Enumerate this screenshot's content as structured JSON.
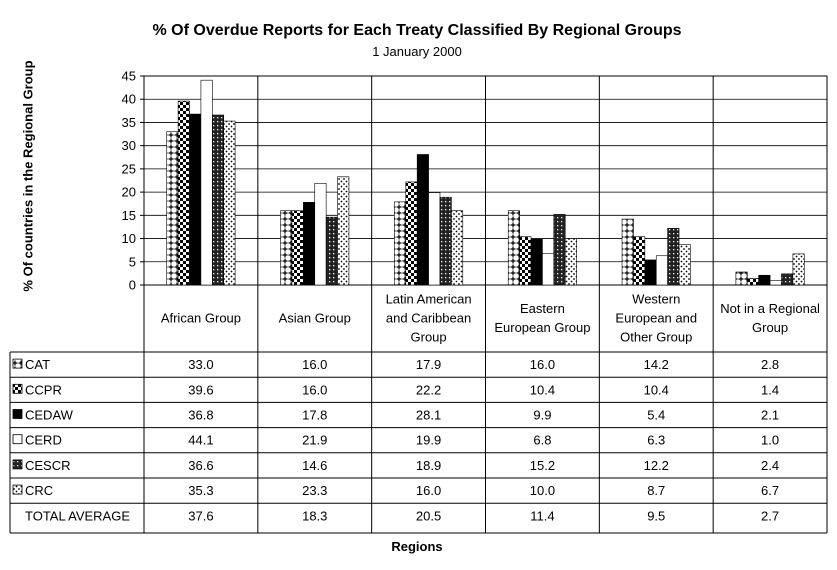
{
  "chart_data": {
    "type": "bar",
    "title": "% Of Overdue Reports for Each Treaty Classified By Regional Groups",
    "subtitle": "1 January 2000",
    "xlabel": "Regions",
    "ylabel": "% Of countries in the Regional Group",
    "ylim": [
      0,
      45
    ],
    "yticks": [
      0,
      5,
      10,
      15,
      20,
      25,
      30,
      35,
      40,
      45
    ],
    "grid": true,
    "categories": [
      "African Group",
      "Asian Group",
      "Latin American and Caribbean Group",
      "Eastern European Group",
      "Western European and Other Group",
      "Not in a Regional Group"
    ],
    "category_lines": [
      [
        "African Group"
      ],
      [
        "Asian Group"
      ],
      [
        "Latin American",
        "and Caribbean",
        "Group"
      ],
      [
        "Eastern",
        "European Group"
      ],
      [
        "Western",
        "European and",
        "Other Group"
      ],
      [
        "Not in a Regional",
        "Group"
      ]
    ],
    "series": [
      {
        "name": "CAT",
        "values": [
          33.0,
          16.0,
          17.9,
          16.0,
          14.2,
          2.8
        ],
        "labels": [
          "33.0",
          "16.0",
          "17.9",
          "16.0",
          "14.2",
          "2.8"
        ],
        "pattern": "plus"
      },
      {
        "name": "CCPR",
        "values": [
          39.6,
          16.0,
          22.2,
          10.4,
          10.4,
          1.4
        ],
        "labels": [
          "39.6",
          "16.0",
          "22.2",
          "10.4",
          "10.4",
          "1.4"
        ],
        "pattern": "checker"
      },
      {
        "name": "CEDAW",
        "values": [
          36.8,
          17.8,
          28.1,
          9.9,
          5.4,
          2.1
        ],
        "labels": [
          "36.8",
          "17.8",
          "28.1",
          "9.9",
          "5.4",
          "2.1"
        ],
        "pattern": "solid"
      },
      {
        "name": "CERD",
        "values": [
          44.1,
          21.9,
          19.9,
          6.8,
          6.3,
          1.0
        ],
        "labels": [
          "44.1",
          "21.9",
          "19.9",
          "6.8",
          "6.3",
          "1.0"
        ],
        "pattern": "blank"
      },
      {
        "name": "CESCR",
        "values": [
          36.6,
          14.6,
          18.9,
          15.2,
          12.2,
          2.4
        ],
        "labels": [
          "36.6",
          "14.6",
          "18.9",
          "15.2",
          "12.2",
          "2.4"
        ],
        "pattern": "dense"
      },
      {
        "name": "CRC",
        "values": [
          35.3,
          23.3,
          16.0,
          10.0,
          8.7,
          6.7
        ],
        "labels": [
          "35.3",
          "23.3",
          "16.0",
          "10.0",
          "8.7",
          "6.7"
        ],
        "pattern": "dots"
      }
    ],
    "total": {
      "name": "TOTAL AVERAGE",
      "values": [
        37.6,
        18.3,
        20.5,
        11.4,
        9.5,
        2.7
      ],
      "labels": [
        "37.6",
        "18.3",
        "20.5",
        "11.4",
        "9.5",
        "2.7"
      ]
    }
  }
}
